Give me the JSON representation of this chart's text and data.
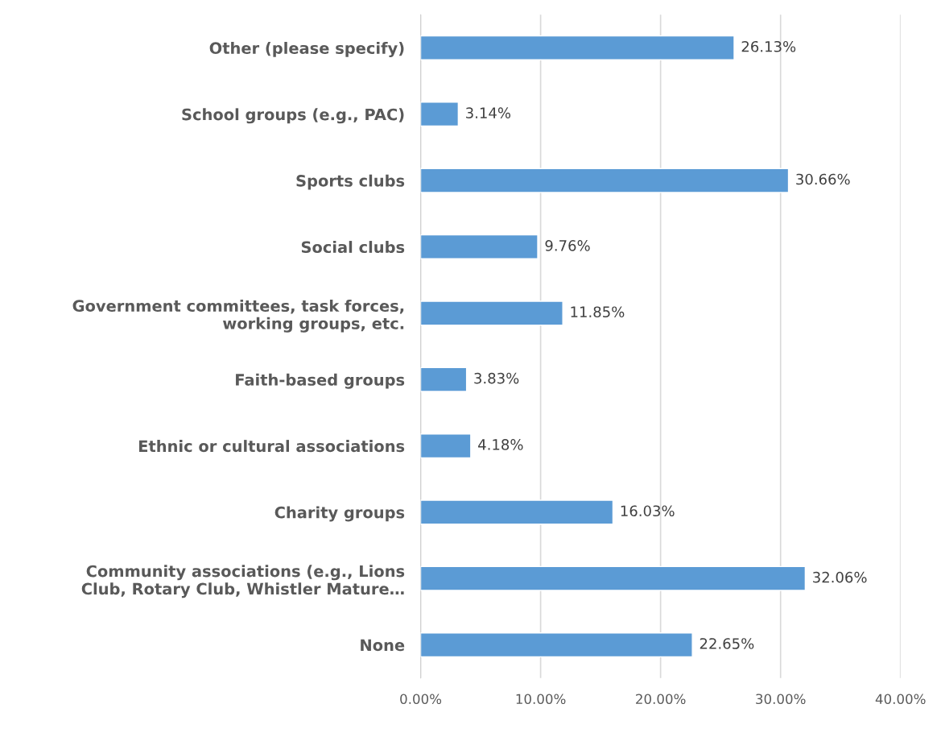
{
  "chart_data": {
    "type": "bar",
    "orientation": "horizontal",
    "categories": [
      "Other (please specify)",
      "School groups (e.g., PAC)",
      "Sports clubs",
      "Social clubs",
      "Government committees, task forces,\nworking groups, etc.",
      "Faith-based groups",
      "Ethnic or cultural associations",
      "Charity groups",
      "Community associations (e.g., Lions\nClub, Rotary Club, Whistler Mature…",
      "None"
    ],
    "values": [
      26.13,
      3.14,
      30.66,
      9.76,
      11.85,
      3.83,
      4.18,
      16.03,
      32.06,
      22.65
    ],
    "value_labels": [
      "26.13%",
      "3.14%",
      "30.66%",
      "9.76%",
      "11.85%",
      "3.83%",
      "4.18%",
      "16.03%",
      "32.06%",
      "22.65%"
    ],
    "color": "#5b9bd5",
    "xlim": [
      0,
      40
    ],
    "xticks": [
      {
        "value": 0,
        "label": "0.00%"
      },
      {
        "value": 10,
        "label": "10.00%"
      },
      {
        "value": 20,
        "label": "20.00%"
      },
      {
        "value": 30,
        "label": "30.00%"
      },
      {
        "value": 40,
        "label": "40.00%"
      }
    ],
    "grid": "x"
  }
}
